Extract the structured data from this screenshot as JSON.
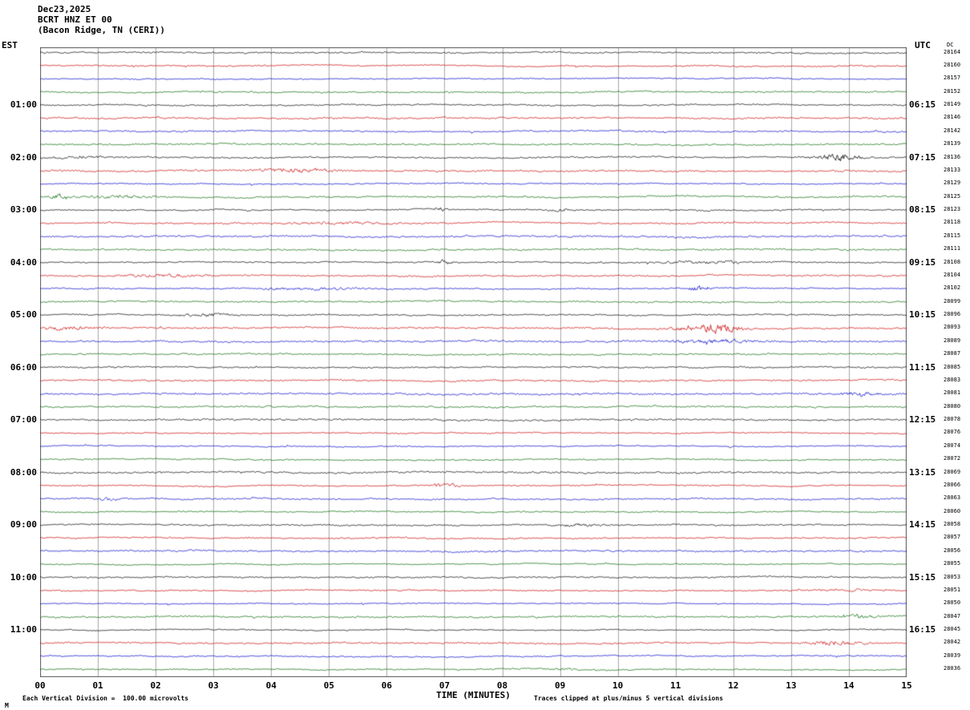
{
  "header": {
    "date": "Dec23,2025",
    "station": "BCRT HNZ ET 00",
    "location": "(Bacon Ridge, TN (CERI))"
  },
  "axes": {
    "left_label": "EST",
    "right_label": "UTC",
    "dc_label": "DC",
    "xlabel": "TIME (MINUTES)"
  },
  "footer": {
    "left_note": "Each Vertical Division =  100.00 microvolts",
    "right_note": "Traces clipped at plus/minus 5 vertical divisions",
    "corner_mark": "M"
  },
  "chart_data": {
    "type": "line",
    "subtype": "helicorder-seismogram",
    "x_ticks": [
      "00",
      "01",
      "02",
      "03",
      "04",
      "05",
      "06",
      "07",
      "08",
      "09",
      "10",
      "11",
      "12",
      "13",
      "14",
      "15"
    ],
    "x_range_minutes": [
      0,
      15
    ],
    "minutes_per_row": 15,
    "grid_color": "#a8a8a8",
    "border_color": "#555555",
    "noise_seed": 20251223,
    "trace_colors": {
      "black": "#000000",
      "red": "#cc0000",
      "blue": "#0000cc",
      "green": "#006600"
    },
    "rows": [
      {
        "est": "00:00",
        "color": "black",
        "dc": "28164",
        "est_label": "",
        "utc_label": ""
      },
      {
        "est": "00:15",
        "color": "red",
        "dc": "28160",
        "est_label": "",
        "utc_label": ""
      },
      {
        "est": "00:30",
        "color": "blue",
        "dc": "28157",
        "est_label": "",
        "utc_label": ""
      },
      {
        "est": "00:45",
        "color": "green",
        "dc": "28152",
        "est_label": "",
        "utc_label": ""
      },
      {
        "est": "01:00",
        "color": "black",
        "dc": "28149",
        "est_label": "01:00",
        "utc_label": "06:15"
      },
      {
        "est": "01:15",
        "color": "red",
        "dc": "28146",
        "est_label": "",
        "utc_label": ""
      },
      {
        "est": "01:30",
        "color": "blue",
        "dc": "28142",
        "est_label": "",
        "utc_label": ""
      },
      {
        "est": "01:45",
        "color": "green",
        "dc": "28139",
        "est_label": "",
        "utc_label": ""
      },
      {
        "est": "02:00",
        "color": "black",
        "dc": "28136",
        "est_label": "02:00",
        "utc_label": "07:15"
      },
      {
        "est": "02:15",
        "color": "red",
        "dc": "28133",
        "est_label": "",
        "utc_label": ""
      },
      {
        "est": "02:30",
        "color": "blue",
        "dc": "28129",
        "est_label": "",
        "utc_label": ""
      },
      {
        "est": "02:45",
        "color": "green",
        "dc": "28125",
        "est_label": "",
        "utc_label": ""
      },
      {
        "est": "03:00",
        "color": "black",
        "dc": "28123",
        "est_label": "03:00",
        "utc_label": "08:15"
      },
      {
        "est": "03:15",
        "color": "red",
        "dc": "28118",
        "est_label": "",
        "utc_label": ""
      },
      {
        "est": "03:30",
        "color": "blue",
        "dc": "28115",
        "est_label": "",
        "utc_label": ""
      },
      {
        "est": "03:45",
        "color": "green",
        "dc": "28111",
        "est_label": "",
        "utc_label": ""
      },
      {
        "est": "04:00",
        "color": "black",
        "dc": "28108",
        "est_label": "04:00",
        "utc_label": "09:15"
      },
      {
        "est": "04:15",
        "color": "red",
        "dc": "28104",
        "est_label": "",
        "utc_label": ""
      },
      {
        "est": "04:30",
        "color": "blue",
        "dc": "28102",
        "est_label": "",
        "utc_label": ""
      },
      {
        "est": "04:45",
        "color": "green",
        "dc": "28099",
        "est_label": "",
        "utc_label": ""
      },
      {
        "est": "05:00",
        "color": "black",
        "dc": "28096",
        "est_label": "05:00",
        "utc_label": "10:15"
      },
      {
        "est": "05:15",
        "color": "red",
        "dc": "28093",
        "est_label": "",
        "utc_label": ""
      },
      {
        "est": "05:30",
        "color": "blue",
        "dc": "28089",
        "est_label": "",
        "utc_label": ""
      },
      {
        "est": "05:45",
        "color": "green",
        "dc": "28087",
        "est_label": "",
        "utc_label": ""
      },
      {
        "est": "06:00",
        "color": "black",
        "dc": "28085",
        "est_label": "06:00",
        "utc_label": "11:15"
      },
      {
        "est": "06:15",
        "color": "red",
        "dc": "28083",
        "est_label": "",
        "utc_label": ""
      },
      {
        "est": "06:30",
        "color": "blue",
        "dc": "28081",
        "est_label": "",
        "utc_label": ""
      },
      {
        "est": "06:45",
        "color": "green",
        "dc": "28080",
        "est_label": "",
        "utc_label": ""
      },
      {
        "est": "07:00",
        "color": "black",
        "dc": "28078",
        "est_label": "07:00",
        "utc_label": "12:15"
      },
      {
        "est": "07:15",
        "color": "red",
        "dc": "28076",
        "est_label": "",
        "utc_label": ""
      },
      {
        "est": "07:30",
        "color": "blue",
        "dc": "28074",
        "est_label": "",
        "utc_label": ""
      },
      {
        "est": "07:45",
        "color": "green",
        "dc": "28072",
        "est_label": "",
        "utc_label": ""
      },
      {
        "est": "08:00",
        "color": "black",
        "dc": "28069",
        "est_label": "08:00",
        "utc_label": "13:15"
      },
      {
        "est": "08:15",
        "color": "red",
        "dc": "28066",
        "est_label": "",
        "utc_label": ""
      },
      {
        "est": "08:30",
        "color": "blue",
        "dc": "28063",
        "est_label": "",
        "utc_label": ""
      },
      {
        "est": "08:45",
        "color": "green",
        "dc": "28060",
        "est_label": "",
        "utc_label": ""
      },
      {
        "est": "09:00",
        "color": "black",
        "dc": "28058",
        "est_label": "09:00",
        "utc_label": "14:15"
      },
      {
        "est": "09:15",
        "color": "red",
        "dc": "28057",
        "est_label": "",
        "utc_label": ""
      },
      {
        "est": "09:30",
        "color": "blue",
        "dc": "28056",
        "est_label": "",
        "utc_label": ""
      },
      {
        "est": "09:45",
        "color": "green",
        "dc": "28055",
        "est_label": "",
        "utc_label": ""
      },
      {
        "est": "10:00",
        "color": "black",
        "dc": "28053",
        "est_label": "10:00",
        "utc_label": "15:15"
      },
      {
        "est": "10:15",
        "color": "red",
        "dc": "28051",
        "est_label": "",
        "utc_label": ""
      },
      {
        "est": "10:30",
        "color": "blue",
        "dc": "28050",
        "est_label": "",
        "utc_label": ""
      },
      {
        "est": "10:45",
        "color": "green",
        "dc": "28047",
        "est_label": "",
        "utc_label": ""
      },
      {
        "est": "11:00",
        "color": "black",
        "dc": "28045",
        "est_label": "11:00",
        "utc_label": "16:15"
      },
      {
        "est": "11:15",
        "color": "red",
        "dc": "28042",
        "est_label": "",
        "utc_label": ""
      },
      {
        "est": "11:30",
        "color": "blue",
        "dc": "28039",
        "est_label": "",
        "utc_label": ""
      },
      {
        "est": "11:45",
        "color": "green",
        "dc": "28036",
        "est_label": "",
        "utc_label": ""
      }
    ],
    "bursts": [
      {
        "row": 8,
        "minute": 13.8,
        "width": 0.25,
        "amp": 6
      },
      {
        "row": 8,
        "minute": 0.6,
        "width": 0.5,
        "amp": 1.5
      },
      {
        "row": 9,
        "minute": 4.4,
        "width": 0.5,
        "amp": 2.2
      },
      {
        "row": 11,
        "minute": 0.35,
        "width": 0.12,
        "amp": 4
      },
      {
        "row": 11,
        "minute": 1.4,
        "width": 0.4,
        "amp": 1.8
      },
      {
        "row": 12,
        "minute": 6.9,
        "width": 0.1,
        "amp": 3.5
      },
      {
        "row": 12,
        "minute": 9.0,
        "width": 0.15,
        "amp": 2.5
      },
      {
        "row": 13,
        "minute": 5.2,
        "width": 0.6,
        "amp": 1.6
      },
      {
        "row": 16,
        "minute": 7.0,
        "width": 0.08,
        "amp": 5
      },
      {
        "row": 16,
        "minute": 11.5,
        "width": 0.6,
        "amp": 2.2
      },
      {
        "row": 17,
        "minute": 2.1,
        "width": 0.5,
        "amp": 1.6
      },
      {
        "row": 18,
        "minute": 11.4,
        "width": 0.15,
        "amp": 5
      },
      {
        "row": 18,
        "minute": 4.6,
        "width": 0.7,
        "amp": 1.8
      },
      {
        "row": 20,
        "minute": 2.9,
        "width": 0.35,
        "amp": 2.4
      },
      {
        "row": 21,
        "minute": 11.6,
        "width": 0.35,
        "amp": 7
      },
      {
        "row": 21,
        "minute": 0.4,
        "width": 0.4,
        "amp": 1.8
      },
      {
        "row": 22,
        "minute": 11.7,
        "width": 0.5,
        "amp": 1.8
      },
      {
        "row": 26,
        "minute": 14.2,
        "width": 0.2,
        "amp": 2.6
      },
      {
        "row": 33,
        "minute": 7.0,
        "width": 0.18,
        "amp": 4
      },
      {
        "row": 34,
        "minute": 1.2,
        "width": 0.15,
        "amp": 2.2
      },
      {
        "row": 36,
        "minute": 9.3,
        "width": 0.3,
        "amp": 1.8
      },
      {
        "row": 41,
        "minute": 13.9,
        "width": 0.3,
        "amp": 2.2
      },
      {
        "row": 43,
        "minute": 14.1,
        "width": 0.25,
        "amp": 2.2
      },
      {
        "row": 45,
        "minute": 13.7,
        "width": 0.3,
        "amp": 2.8
      },
      {
        "row": 47,
        "minute": 9.0,
        "width": 0.6,
        "amp": 1.4
      }
    ]
  }
}
